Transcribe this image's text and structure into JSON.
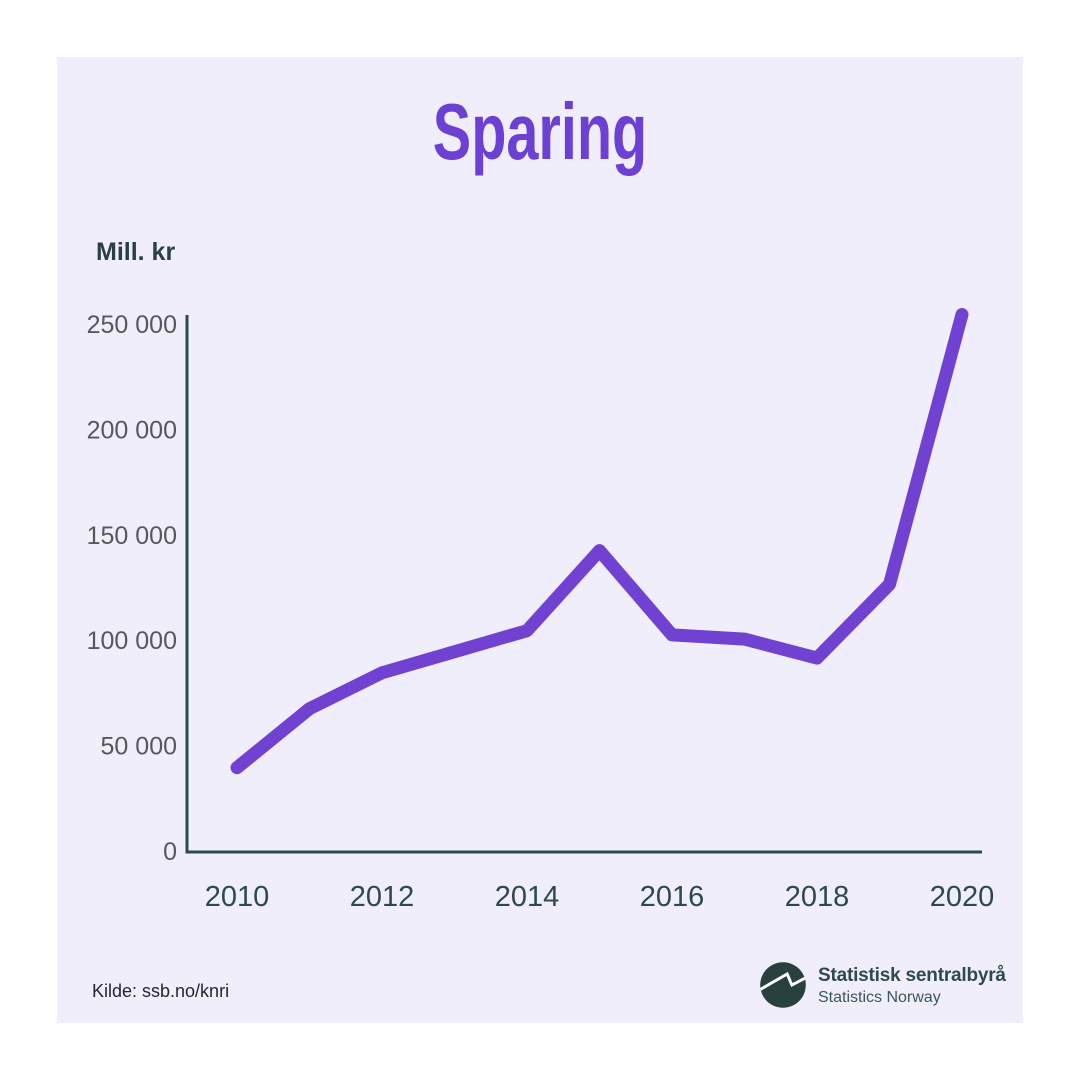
{
  "page": {
    "background": "#FFFFFF",
    "card_background": "#F0EEFA"
  },
  "title": {
    "text": "Sparing",
    "color": "#6B40D2"
  },
  "source": {
    "label": "Kilde: ssb.no/knri",
    "color": "#26262B"
  },
  "logo": {
    "name_no": "Statistisk sentralbyrå",
    "name_en": "Statistics Norway",
    "mark_color": "#28403E",
    "zigzag_color": "#FFFFFF",
    "text_color": "#2E4A4C",
    "subtext_color": "#3C5759"
  },
  "chart_data": {
    "type": "line",
    "title": "Sparing",
    "xlabel": "",
    "ylabel": "Mill. kr",
    "x": [
      2010,
      2011,
      2012,
      2013,
      2014,
      2015,
      2016,
      2017,
      2018,
      2019,
      2020
    ],
    "series": [
      {
        "name": "Sparing",
        "color": "#7142D2",
        "values": [
          40000,
          68000,
          85000,
          95000,
          105000,
          143000,
          103000,
          101000,
          92000,
          127000,
          255000
        ]
      }
    ],
    "x_tick_labels": [
      "2010",
      "2012",
      "2014",
      "2016",
      "2018",
      "2020"
    ],
    "y_ticks": [
      {
        "value": 0,
        "label": "0"
      },
      {
        "value": 50000,
        "label": "50 000"
      },
      {
        "value": 100000,
        "label": "100 000"
      },
      {
        "value": 150000,
        "label": "150 000"
      },
      {
        "value": 200000,
        "label": "200 000"
      },
      {
        "value": 250000,
        "label": "250 000"
      }
    ],
    "ylim": [
      0,
      250000
    ],
    "grid": false,
    "legend": "none",
    "axis_color": "#2C4A4E",
    "x_tick_color": "#2C4A4E",
    "y_tick_color": "#58585C",
    "ylabel_color": "#2A3F46"
  }
}
